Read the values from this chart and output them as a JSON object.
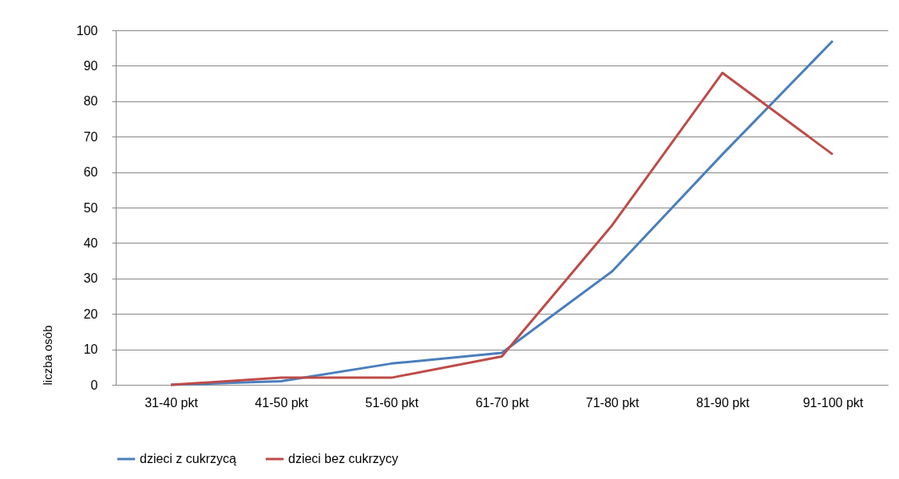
{
  "chart_data": {
    "type": "line",
    "ylabel": "liczba osób",
    "categories": [
      "31-40 pkt",
      "41-50 pkt",
      "51-60 pkt",
      "61-70 pkt",
      "71-80 pkt",
      "81-90 pkt",
      "91-100 pkt"
    ],
    "series": [
      {
        "name": "dzieci z cukrzycą",
        "color": "#4a7ebb",
        "values": [
          0,
          1,
          6,
          9,
          32,
          65,
          97
        ]
      },
      {
        "name": "dzieci bez cukrzycy",
        "color": "#be4b48",
        "values": [
          0,
          2,
          2,
          8,
          45,
          88,
          65
        ]
      }
    ],
    "ylim": [
      0,
      100
    ],
    "yticks": [
      0,
      10,
      20,
      30,
      40,
      50,
      60,
      70,
      80,
      90,
      100
    ],
    "grid": "y",
    "legend": "bottom",
    "marker": "none",
    "line_style": "solid"
  }
}
